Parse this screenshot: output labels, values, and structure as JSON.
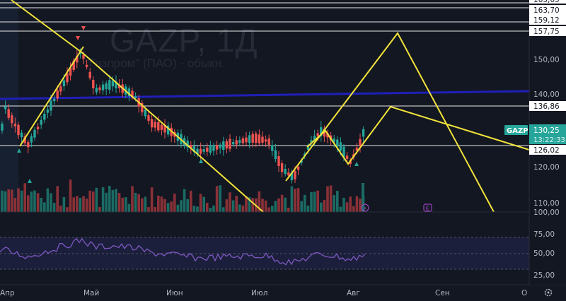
{
  "watermark": {
    "symbol_line": "GAZP, 1Д",
    "company_line": "\"Газпром\" (ПАО) - обыкн."
  },
  "price_axis": {
    "ticks": [
      "150,00",
      "140,00",
      "120,00",
      "110,00",
      "100,00"
    ],
    "levels": [
      {
        "label": "163,70",
        "value": 163.7
      },
      {
        "label": "159,12",
        "value": 159.12
      },
      {
        "label": "157,75",
        "value": 157.75
      },
      {
        "label": "136,86",
        "value": 136.86
      },
      {
        "label": "126,02",
        "value": 126.02
      }
    ],
    "top_label_partial": "165,65",
    "current_price": {
      "ticker": "GAZP",
      "price": "130,25",
      "countdown": "13:22:33",
      "value": 130.25
    }
  },
  "rsi_axis": {
    "ticks": [
      "75,00",
      "50,00",
      "25,00"
    ]
  },
  "time_axis": {
    "labels": [
      "Апр",
      "Май",
      "Июн",
      "Июл",
      "Авг",
      "Сен",
      "О"
    ]
  },
  "markers": {
    "earnings_label": "E"
  },
  "colors": {
    "background": "#131722",
    "bull": "#26a69a",
    "bear": "#ef5350",
    "drawing": "#f2e33a",
    "support_line": "#1f1fb8",
    "rsi_line": "#7e57c2",
    "rsi_band": "#1b1f3b",
    "price_tag": "#26a69a"
  },
  "icons": {
    "settings": "gear-icon"
  }
}
